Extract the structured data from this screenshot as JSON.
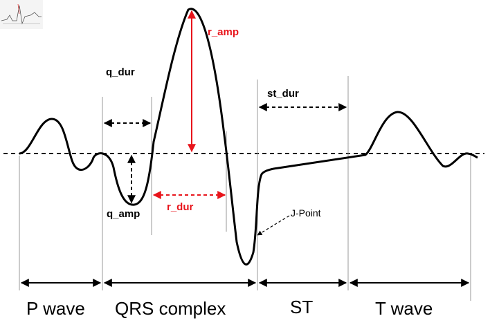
{
  "measurements": {
    "q_dur": "q_dur",
    "st_dur": "st_dur",
    "r_amp": "r_amp",
    "q_amp": "q_amp",
    "r_dur": "r_dur",
    "j_point": "J-Point"
  },
  "segments": {
    "p_wave": "P wave",
    "qrs_complex": "QRS complex",
    "st": "ST",
    "t_wave": "T wave"
  },
  "colors": {
    "trace": "#000000",
    "highlight": "#e8141b",
    "guide": "#9a9a9a"
  }
}
